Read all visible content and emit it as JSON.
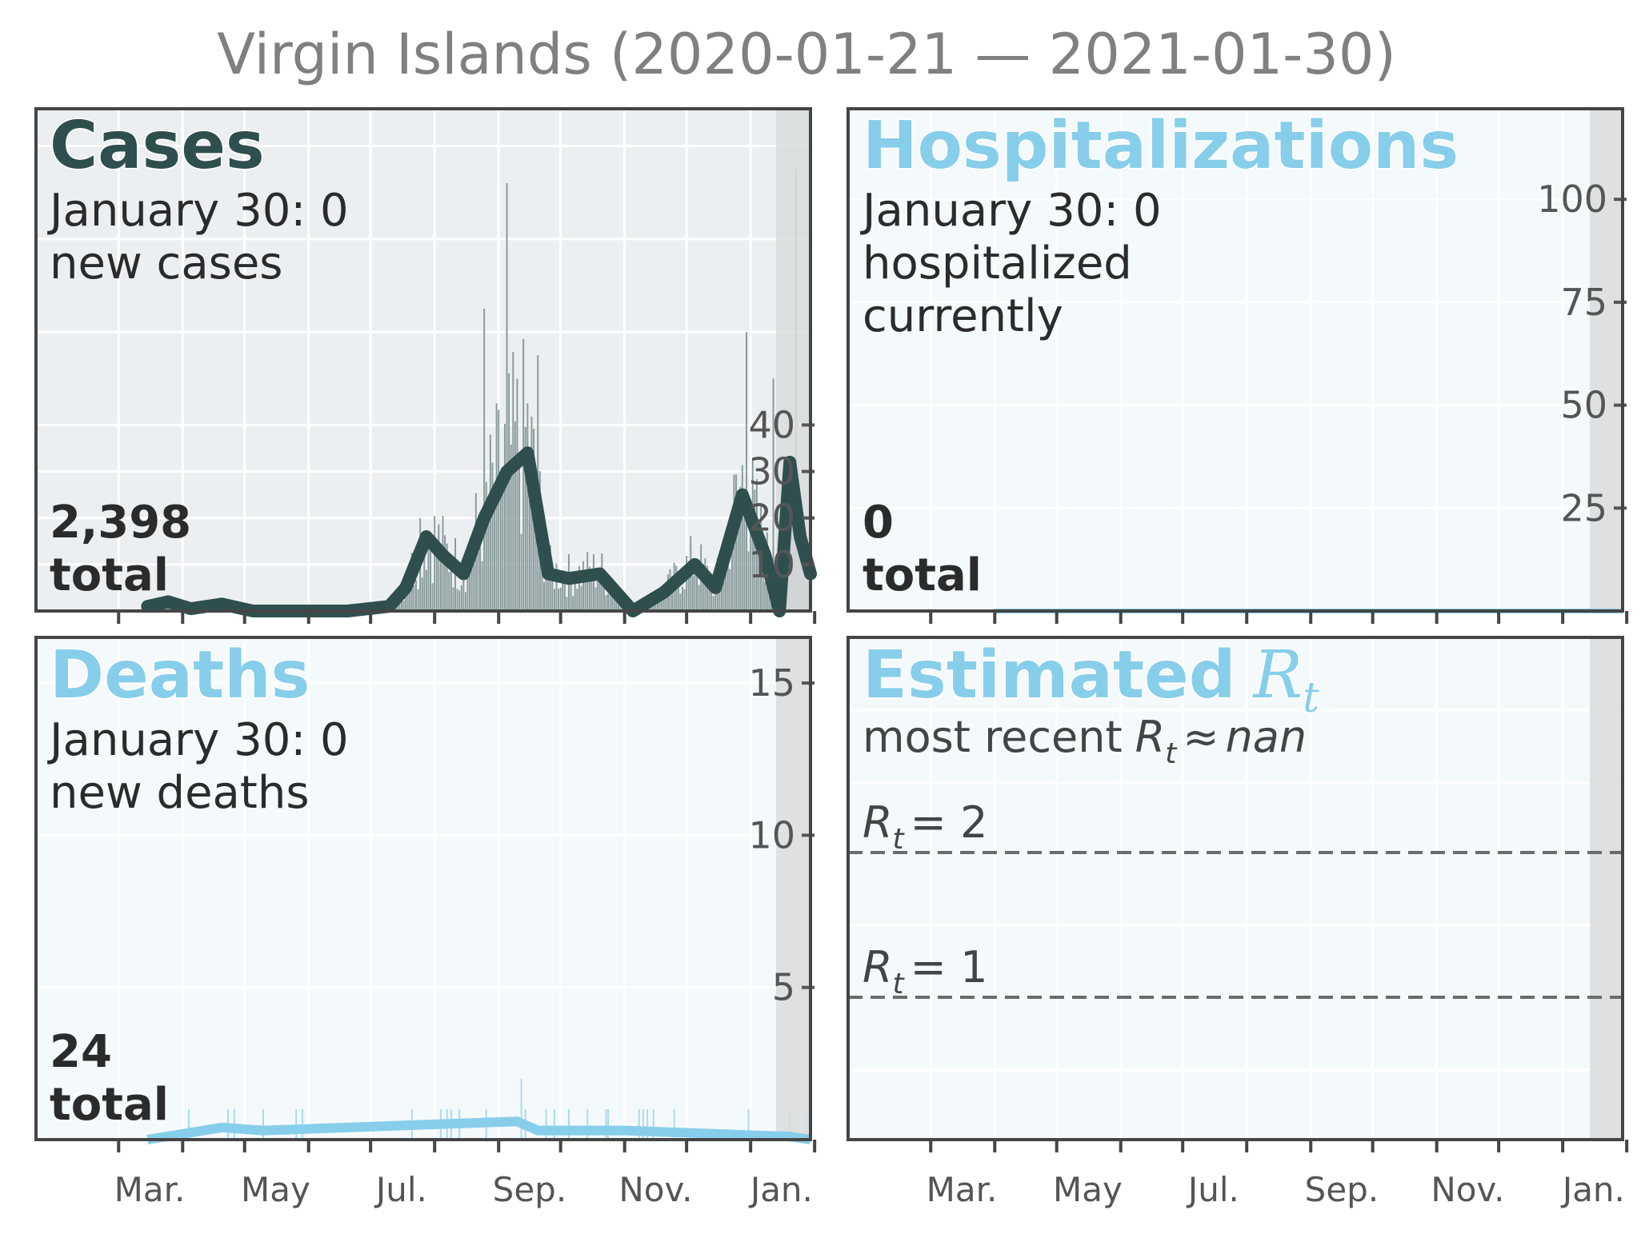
{
  "title": "Virgin Islands (2020-01-21 — 2021-01-30)",
  "month_labels": [
    "Mar.",
    "May",
    "Jul.",
    "Sep.",
    "Nov.",
    "Jan."
  ],
  "colors": {
    "cases": "#2f4f4f",
    "others": "#87ceeb",
    "cases_bg": "#eceff1",
    "others_bg": "#f4f9fc",
    "shade": "#d9dcdd",
    "frame": "#454545",
    "tick_text": "#555555",
    "title_text": "#808080"
  },
  "panels": {
    "cases": {
      "heading": "Cases",
      "line1": "January 30: 0",
      "line2": "new cases",
      "total_value": "2,398",
      "total_label": "total"
    },
    "hosp": {
      "heading": "Hospitalizations",
      "line1": "January 30: 0",
      "line2": "hospitalized",
      "line3": "currently",
      "total_value": "0",
      "total_label": "total"
    },
    "deaths": {
      "heading": "Deaths",
      "line1": "January 30: 0",
      "line2": "new deaths",
      "total_value": "24",
      "total_label": "total"
    },
    "rt": {
      "heading": "Estimated",
      "heading_sym": "R",
      "heading_sub": "t",
      "recent_prefix": "most recent",
      "recent_sym": "R",
      "recent_sub": "t",
      "recent_approx": "≈",
      "recent_value": "nan",
      "ref2_sym": "R",
      "ref2_sub": "t",
      "ref2_eq": "= 2",
      "ref1_sym": "R",
      "ref1_sub": "t",
      "ref1_eq": "= 1"
    }
  },
  "chart_data": [
    {
      "type": "bar",
      "name": "Cases",
      "x_range": [
        "2020-01-21",
        "2021-01-30"
      ],
      "y_ticks": [
        10,
        20,
        30,
        40
      ],
      "shaded_recent_days": 8,
      "smoothed_average": [
        [
          "2020-03-15",
          1
        ],
        [
          "2020-03-25",
          2
        ],
        [
          "2020-04-05",
          0.5
        ],
        [
          "2020-04-20",
          1.5
        ],
        [
          "2020-05-05",
          0
        ],
        [
          "2020-06-20",
          0
        ],
        [
          "2020-07-10",
          1
        ],
        [
          "2020-07-18",
          5
        ],
        [
          "2020-07-28",
          16
        ],
        [
          "2020-08-05",
          12
        ],
        [
          "2020-08-15",
          8
        ],
        [
          "2020-08-25",
          20
        ],
        [
          "2020-09-05",
          30
        ],
        [
          "2020-09-15",
          34
        ],
        [
          "2020-09-25",
          8
        ],
        [
          "2020-10-05",
          7
        ],
        [
          "2020-10-20",
          8
        ],
        [
          "2020-11-05",
          0
        ],
        [
          "2020-11-20",
          4
        ],
        [
          "2020-12-05",
          10
        ],
        [
          "2020-12-15",
          5
        ],
        [
          "2020-12-28",
          25
        ],
        [
          "2021-01-08",
          12
        ],
        [
          "2021-01-15",
          0
        ],
        [
          "2021-01-20",
          32
        ],
        [
          "2021-01-25",
          16
        ],
        [
          "2021-01-30",
          8
        ]
      ],
      "daily_peaks": [
        [
          "2020-07-25",
          20
        ],
        [
          "2020-08-25",
          65
        ],
        [
          "2020-09-05",
          92
        ],
        [
          "2020-09-20",
          55
        ],
        [
          "2020-12-30",
          60
        ],
        [
          "2021-01-12",
          50
        ],
        [
          "2021-01-23",
          95
        ]
      ]
    },
    {
      "type": "bar",
      "name": "Hospitalizations",
      "x_range": [
        "2020-01-21",
        "2021-01-30"
      ],
      "y_ticks": [
        25,
        50,
        75,
        100
      ],
      "shaded_recent_days": 8,
      "series": [
        [
          "2020-04-01",
          0
        ],
        [
          "2021-01-30",
          0
        ]
      ]
    },
    {
      "type": "bar",
      "name": "Deaths",
      "x_range": [
        "2020-01-21",
        "2021-01-30"
      ],
      "y_ticks": [
        5,
        10,
        15
      ],
      "shaded_recent_days": 8,
      "smoothed_average": [
        [
          "2020-03-15",
          0
        ],
        [
          "2020-04-20",
          0.4
        ],
        [
          "2020-05-10",
          0.3
        ],
        [
          "2020-09-10",
          0.6
        ],
        [
          "2020-09-20",
          0.3
        ],
        [
          "2020-11-01",
          0.3
        ],
        [
          "2021-01-20",
          0.1
        ],
        [
          "2021-01-30",
          0
        ]
      ],
      "daily_peaks": [
        [
          "2020-09-12",
          2
        ],
        [
          "2020-11-15",
          1
        ],
        [
          "2021-01-20",
          1
        ]
      ]
    },
    {
      "type": "line",
      "name": "Estimated Rt",
      "x_range": [
        "2020-01-21",
        "2021-01-30"
      ],
      "reference_lines": [
        1,
        2
      ],
      "shaded_recent_days": 8,
      "most_recent_value": "nan"
    }
  ]
}
